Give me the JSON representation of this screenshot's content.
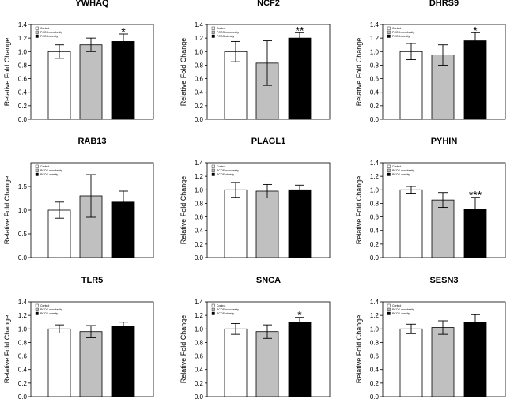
{
  "chart_data": {
    "type": "bar",
    "ylabel": "Relative Fold Change",
    "legend": {
      "placement": "top-left",
      "entries": [
        "Control",
        "PCOS-nonobesity",
        "PCOS-obesity"
      ],
      "colors": [
        "#ffffff",
        "#c0c0c0",
        "#000000"
      ]
    },
    "bar_edge_color": "#000000",
    "panels": [
      {
        "title": "YWHAQ",
        "ylim": [
          0,
          1.4
        ],
        "yticks": [
          "0.0",
          "0.2",
          "0.4",
          "0.6",
          "0.8",
          "1.0",
          "1.2",
          "1.4"
        ],
        "values": [
          1.0,
          1.1,
          1.15
        ],
        "errors": [
          0.1,
          0.1,
          0.11
        ],
        "significance": [
          "",
          "",
          "*"
        ]
      },
      {
        "title": "NCF2",
        "ylim": [
          0,
          1.4
        ],
        "yticks": [
          "0.0",
          "0.2",
          "0.4",
          "0.6",
          "0.8",
          "1.0",
          "1.2",
          "1.4"
        ],
        "values": [
          1.0,
          0.83,
          1.2
        ],
        "errors": [
          0.15,
          0.33,
          0.08
        ],
        "significance": [
          "",
          "",
          "**"
        ]
      },
      {
        "title": "DHRS9",
        "ylim": [
          0,
          1.4
        ],
        "yticks": [
          "0.0",
          "0.2",
          "0.4",
          "0.6",
          "0.8",
          "1.0",
          "1.2",
          "1.4"
        ],
        "values": [
          1.0,
          0.95,
          1.16
        ],
        "errors": [
          0.12,
          0.15,
          0.12
        ],
        "significance": [
          "",
          "",
          "*"
        ]
      },
      {
        "title": "RAB13",
        "ylim": [
          0,
          2.0
        ],
        "yticks": [
          "0.0",
          "0.5",
          "1.0",
          "1.5"
        ],
        "values": [
          1.0,
          1.3,
          1.17
        ],
        "errors": [
          0.17,
          0.45,
          0.23
        ],
        "significance": [
          "",
          "",
          ""
        ]
      },
      {
        "title": "PLAGL1",
        "ylim": [
          0,
          1.4
        ],
        "yticks": [
          "0.0",
          "0.2",
          "0.4",
          "0.6",
          "0.8",
          "1.0",
          "1.2",
          "1.4"
        ],
        "values": [
          1.0,
          0.98,
          1.0
        ],
        "errors": [
          0.11,
          0.1,
          0.07
        ],
        "significance": [
          "",
          "",
          ""
        ]
      },
      {
        "title": "PYHIN",
        "ylim": [
          0,
          1.4
        ],
        "yticks": [
          "0.0",
          "0.2",
          "0.4",
          "0.6",
          "0.8",
          "1.0",
          "1.2",
          "1.4"
        ],
        "values": [
          1.0,
          0.85,
          0.71
        ],
        "errors": [
          0.05,
          0.11,
          0.18
        ],
        "significance": [
          "",
          "",
          "***"
        ]
      },
      {
        "title": "TLR5",
        "ylim": [
          0,
          1.4
        ],
        "yticks": [
          "0.0",
          "0.2",
          "0.4",
          "0.6",
          "0.8",
          "1.0",
          "1.2",
          "1.4"
        ],
        "values": [
          1.0,
          0.96,
          1.04
        ],
        "errors": [
          0.06,
          0.09,
          0.06
        ],
        "significance": [
          "",
          "",
          ""
        ]
      },
      {
        "title": "SNCA",
        "ylim": [
          0,
          1.4
        ],
        "yticks": [
          "0.0",
          "0.2",
          "0.4",
          "0.6",
          "0.8",
          "1.0",
          "1.2",
          "1.4"
        ],
        "values": [
          1.0,
          0.96,
          1.1
        ],
        "errors": [
          0.08,
          0.1,
          0.07
        ],
        "significance": [
          "",
          "",
          "*"
        ]
      },
      {
        "title": "SESN3",
        "ylim": [
          0,
          1.4
        ],
        "yticks": [
          "0.0",
          "0.2",
          "0.4",
          "0.6",
          "0.8",
          "1.0",
          "1.2",
          "1.4"
        ],
        "values": [
          1.0,
          1.02,
          1.1
        ],
        "errors": [
          0.07,
          0.1,
          0.11
        ],
        "significance": [
          "",
          "",
          ""
        ]
      }
    ]
  }
}
